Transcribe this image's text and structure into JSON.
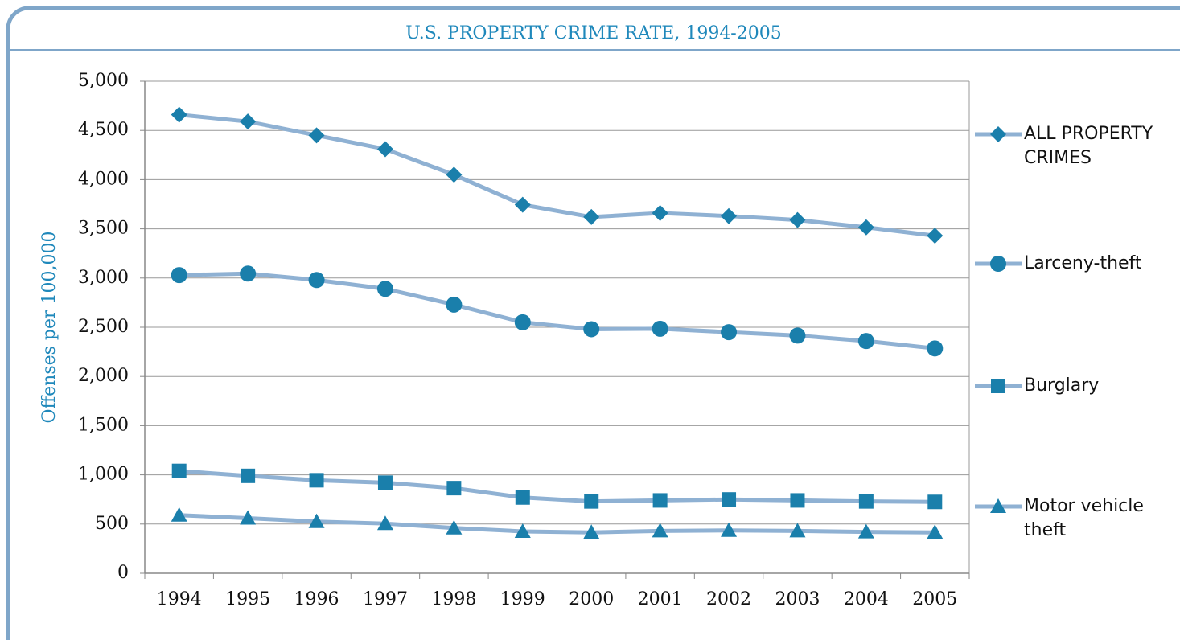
{
  "chart_data": {
    "type": "line",
    "title": "U.S. PROPERTY CRIME RATE, 1994-2005",
    "y_label": "Offenses per 100,000",
    "categories": [
      "1994",
      "1995",
      "1996",
      "1997",
      "1998",
      "1999",
      "2000",
      "2001",
      "2002",
      "2003",
      "2004",
      "2005"
    ],
    "series": [
      {
        "name": "ALL PROPERTY CRIMES",
        "color": "#1a7fab",
        "line_color": "#8fb1d3",
        "marker": "diamond",
        "values": [
          4660,
          4590,
          4450,
          4310,
          4050,
          3745,
          3620,
          3660,
          3630,
          3590,
          3515,
          3430
        ]
      },
      {
        "name": "Larceny-theft",
        "color": "#1a7fab",
        "line_color": "#8fb1d3",
        "marker": "circle",
        "values": [
          3030,
          3045,
          2980,
          2890,
          2730,
          2550,
          2480,
          2485,
          2450,
          2415,
          2360,
          2285
        ]
      },
      {
        "name": "Burglary",
        "color": "#1a7fab",
        "line_color": "#8fb1d3",
        "marker": "square",
        "values": [
          1040,
          990,
          945,
          920,
          865,
          770,
          730,
          740,
          750,
          740,
          730,
          725
        ]
      },
      {
        "name": "Motor vehicle theft",
        "color": "#1a7fab",
        "line_color": "#8fb1d3",
        "marker": "triangle",
        "values": [
          590,
          560,
          525,
          505,
          460,
          425,
          415,
          430,
          435,
          430,
          420,
          415
        ]
      }
    ],
    "ylim": [
      0,
      5000
    ],
    "yticks": [
      0,
      500,
      {
        "value": 1000,
        "label": "1,000"
      },
      {
        "value": 1500,
        "label": "1,500"
      },
      {
        "value": 2000,
        "label": "2,000"
      },
      {
        "value": 2500,
        "label": "2,500"
      },
      {
        "value": 3000,
        "label": "3,000"
      },
      {
        "value": 3500,
        "label": "3,500"
      },
      {
        "value": 4000,
        "label": "4,000"
      },
      {
        "value": 4500,
        "label": "4,500"
      },
      {
        "value": 5000,
        "label": "5,000"
      }
    ],
    "grid": true,
    "legend": "right"
  }
}
